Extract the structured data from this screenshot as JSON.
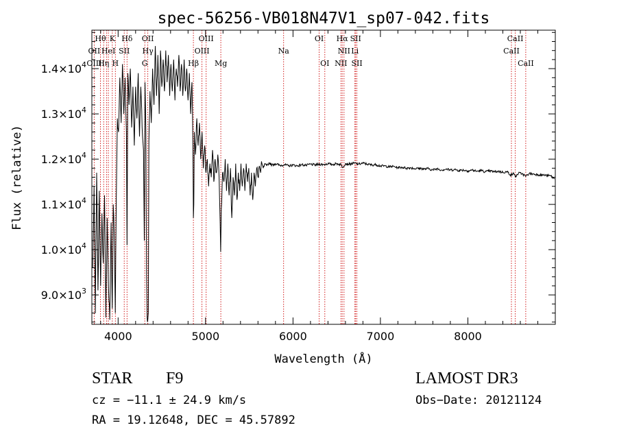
{
  "chart_data": {
    "type": "line",
    "title": "spec-56256-VB018N47V1_sp07-042.fits",
    "xlabel": "Wavelength (Å)",
    "ylabel": "Flux (relative)",
    "xlim": [
      3700,
      9000
    ],
    "ylim": [
      8350,
      14850
    ],
    "x_ticks": [
      4000,
      5000,
      6000,
      7000,
      8000
    ],
    "x_tick_labels": [
      "4000",
      "5000",
      "6000",
      "7000",
      "8000"
    ],
    "y_ticks": [
      9000,
      10000,
      11000,
      12000,
      13000,
      14000
    ],
    "y_tick_labels": [
      {
        "mant": "9.0",
        "exp": "3"
      },
      {
        "mant": "1.0",
        "exp": "4"
      },
      {
        "mant": "1.1",
        "exp": "4"
      },
      {
        "mant": "1.2",
        "exp": "4"
      },
      {
        "mant": "1.3",
        "exp": "4"
      },
      {
        "mant": "1.4",
        "exp": "4"
      }
    ],
    "series": [
      {
        "name": "flux",
        "color": "#000000",
        "points": [
          [
            3710,
            9600
          ],
          [
            3725,
            11400
          ],
          [
            3740,
            8600
          ],
          [
            3755,
            11700
          ],
          [
            3770,
            9100
          ],
          [
            3785,
            11300
          ],
          [
            3800,
            9200
          ],
          [
            3815,
            10800
          ],
          [
            3830,
            9700
          ],
          [
            3845,
            11200
          ],
          [
            3860,
            8500
          ],
          [
            3875,
            10700
          ],
          [
            3890,
            9200
          ],
          [
            3905,
            8450
          ],
          [
            3920,
            10600
          ],
          [
            3933,
            8700
          ],
          [
            3945,
            11000
          ],
          [
            3955,
            10400
          ],
          [
            3968,
            8600
          ],
          [
            3980,
            11200
          ],
          [
            3992,
            12900
          ],
          [
            4005,
            12600
          ],
          [
            4020,
            13800
          ],
          [
            4035,
            12800
          ],
          [
            4050,
            14100
          ],
          [
            4065,
            13000
          ],
          [
            4080,
            13800
          ],
          [
            4095,
            12600
          ],
          [
            4102,
            10100
          ],
          [
            4112,
            13900
          ],
          [
            4125,
            13200
          ],
          [
            4140,
            14000
          ],
          [
            4155,
            12700
          ],
          [
            4170,
            13600
          ],
          [
            4185,
            12300
          ],
          [
            4200,
            13600
          ],
          [
            4215,
            12900
          ],
          [
            4230,
            13900
          ],
          [
            4245,
            12500
          ],
          [
            4260,
            13600
          ],
          [
            4275,
            12700
          ],
          [
            4290,
            12200
          ],
          [
            4300,
            10200
          ],
          [
            4308,
            13700
          ],
          [
            4318,
            12600
          ],
          [
            4326,
            9400
          ],
          [
            4332,
            8500
          ],
          [
            4340,
            8450
          ],
          [
            4346,
            8600
          ],
          [
            4352,
            12400
          ],
          [
            4365,
            13500
          ],
          [
            4380,
            12800
          ],
          [
            4395,
            14000
          ],
          [
            4410,
            13200
          ],
          [
            4425,
            14500
          ],
          [
            4440,
            13400
          ],
          [
            4455,
            14300
          ],
          [
            4470,
            13000
          ],
          [
            4485,
            14400
          ],
          [
            4500,
            13600
          ],
          [
            4515,
            14200
          ],
          [
            4530,
            13500
          ],
          [
            4545,
            14400
          ],
          [
            4560,
            13700
          ],
          [
            4575,
            14300
          ],
          [
            4590,
            13400
          ],
          [
            4605,
            14100
          ],
          [
            4620,
            13500
          ],
          [
            4635,
            14200
          ],
          [
            4650,
            13300
          ],
          [
            4665,
            14000
          ],
          [
            4680,
            13600
          ],
          [
            4695,
            14300
          ],
          [
            4710,
            13500
          ],
          [
            4725,
            14100
          ],
          [
            4740,
            13400
          ],
          [
            4755,
            14200
          ],
          [
            4770,
            13500
          ],
          [
            4785,
            14000
          ],
          [
            4800,
            13300
          ],
          [
            4815,
            13900
          ],
          [
            4830,
            13000
          ],
          [
            4845,
            13700
          ],
          [
            4856,
            12300
          ],
          [
            4861,
            10700
          ],
          [
            4866,
            11000
          ],
          [
            4872,
            12600
          ],
          [
            4885,
            12100
          ],
          [
            4900,
            12900
          ],
          [
            4915,
            12300
          ],
          [
            4930,
            12800
          ],
          [
            4945,
            12000
          ],
          [
            4960,
            12600
          ],
          [
            4975,
            11800
          ],
          [
            4990,
            12300
          ],
          [
            5005,
            11700
          ],
          [
            5020,
            12000
          ],
          [
            5035,
            11400
          ],
          [
            5050,
            11900
          ],
          [
            5065,
            11600
          ],
          [
            5080,
            12200
          ],
          [
            5095,
            11500
          ],
          [
            5110,
            12000
          ],
          [
            5125,
            11700
          ],
          [
            5140,
            12100
          ],
          [
            5155,
            11600
          ],
          [
            5167,
            10600
          ],
          [
            5173,
            9950
          ],
          [
            5180,
            10900
          ],
          [
            5195,
            11700
          ],
          [
            5210,
            11500
          ],
          [
            5225,
            12000
          ],
          [
            5240,
            11300
          ],
          [
            5255,
            11900
          ],
          [
            5270,
            11200
          ],
          [
            5285,
            11800
          ],
          [
            5300,
            10700
          ],
          [
            5315,
            11600
          ],
          [
            5330,
            11200
          ],
          [
            5345,
            11900
          ],
          [
            5360,
            11100
          ],
          [
            5375,
            11700
          ],
          [
            5390,
            11300
          ],
          [
            5405,
            11900
          ],
          [
            5420,
            11400
          ],
          [
            5435,
            11800
          ],
          [
            5450,
            11300
          ],
          [
            5465,
            11900
          ],
          [
            5480,
            11500
          ],
          [
            5495,
            11800
          ],
          [
            5510,
            11200
          ],
          [
            5525,
            11700
          ],
          [
            5540,
            11100
          ],
          [
            5555,
            11700
          ],
          [
            5570,
            11400
          ],
          [
            5585,
            11800
          ],
          [
            5600,
            11600
          ],
          [
            5615,
            11850
          ],
          [
            5630,
            11700
          ],
          [
            5645,
            11900
          ],
          [
            5660,
            11800
          ],
          [
            5680,
            11900
          ],
          [
            5700,
            11850
          ],
          [
            5730,
            11920
          ],
          [
            5760,
            11870
          ],
          [
            5800,
            11900
          ],
          [
            5850,
            11860
          ],
          [
            5900,
            11880
          ],
          [
            5950,
            11850
          ],
          [
            6000,
            11870
          ],
          [
            6050,
            11850
          ],
          [
            6100,
            11880
          ],
          [
            6150,
            11860
          ],
          [
            6200,
            11890
          ],
          [
            6250,
            11870
          ],
          [
            6300,
            11890
          ],
          [
            6350,
            11880
          ],
          [
            6400,
            11900
          ],
          [
            6450,
            11880
          ],
          [
            6500,
            11900
          ],
          [
            6550,
            11880
          ],
          [
            6563,
            11820
          ],
          [
            6600,
            11900
          ],
          [
            6650,
            11890
          ],
          [
            6700,
            11910
          ],
          [
            6750,
            11890
          ],
          [
            6800,
            11910
          ],
          [
            6850,
            11890
          ],
          [
            6900,
            11870
          ],
          [
            6950,
            11880
          ],
          [
            7000,
            11850
          ],
          [
            7050,
            11850
          ],
          [
            7100,
            11830
          ],
          [
            7150,
            11840
          ],
          [
            7200,
            11810
          ],
          [
            7250,
            11820
          ],
          [
            7300,
            11800
          ],
          [
            7350,
            11810
          ],
          [
            7400,
            11790
          ],
          [
            7450,
            11800
          ],
          [
            7500,
            11780
          ],
          [
            7550,
            11790
          ],
          [
            7600,
            11760
          ],
          [
            7650,
            11790
          ],
          [
            7700,
            11760
          ],
          [
            7750,
            11780
          ],
          [
            7800,
            11760
          ],
          [
            7850,
            11770
          ],
          [
            7900,
            11750
          ],
          [
            7950,
            11760
          ],
          [
            8000,
            11740
          ],
          [
            8050,
            11760
          ],
          [
            8100,
            11730
          ],
          [
            8150,
            11750
          ],
          [
            8200,
            11720
          ],
          [
            8250,
            11740
          ],
          [
            8300,
            11720
          ],
          [
            8350,
            11730
          ],
          [
            8400,
            11710
          ],
          [
            8450,
            11720
          ],
          [
            8498,
            11640
          ],
          [
            8520,
            11700
          ],
          [
            8542,
            11610
          ],
          [
            8580,
            11690
          ],
          [
            8620,
            11680
          ],
          [
            8662,
            11620
          ],
          [
            8700,
            11680
          ],
          [
            8750,
            11670
          ],
          [
            8800,
            11660
          ],
          [
            8850,
            11650
          ],
          [
            8900,
            11640
          ],
          [
            8950,
            11630
          ],
          [
            8990,
            11560
          ]
        ]
      }
    ],
    "annotations": [
      {
        "label": "Hθ",
        "wl": 3798,
        "row": 0
      },
      {
        "label": "OII",
        "wl": 3727,
        "row": 1
      },
      {
        "label": "OIII",
        "wl": 3727,
        "row": 2
      },
      {
        "label": "K",
        "wl": 3934,
        "row": 0
      },
      {
        "label": "HeI",
        "wl": 3889,
        "row": 1
      },
      {
        "label": "Hη",
        "wl": 3835,
        "row": 2
      },
      {
        "label": "SII",
        "wl": 4070,
        "row": 1
      },
      {
        "label": "H",
        "wl": 3969,
        "row": 2
      },
      {
        "label": "Hδ",
        "wl": 4102,
        "row": 0
      },
      {
        "label": "OII",
        "wl": 4340,
        "row": 0
      },
      {
        "label": "Hγ",
        "wl": 4340,
        "row": 1
      },
      {
        "label": "G",
        "wl": 4305,
        "row": 2
      },
      {
        "label": "OIII",
        "wl": 5007,
        "row": 0
      },
      {
        "label": "OIII",
        "wl": 4959,
        "row": 1
      },
      {
        "label": "Hβ",
        "wl": 4861,
        "row": 2
      },
      {
        "label": "Mg",
        "wl": 5175,
        "row": 2
      },
      {
        "label": "Na",
        "wl": 5893,
        "row": 1
      },
      {
        "label": "OI",
        "wl": 6300,
        "row": 0
      },
      {
        "label": "OI",
        "wl": 6364,
        "row": 2
      },
      {
        "label": "Hα",
        "wl": 6563,
        "row": 0
      },
      {
        "label": "SII",
        "wl": 6716,
        "row": 0
      },
      {
        "label": "NII",
        "wl": 6584,
        "row": 1
      },
      {
        "label": "Li",
        "wl": 6708,
        "row": 1
      },
      {
        "label": "NII",
        "wl": 6548,
        "row": 2
      },
      {
        "label": "SII",
        "wl": 6731,
        "row": 2
      },
      {
        "label": "CaII",
        "wl": 8542,
        "row": 0
      },
      {
        "label": "CaII",
        "wl": 8498,
        "row": 1
      },
      {
        "label": "CaII",
        "wl": 8662,
        "row": 2
      }
    ],
    "line_markers": [
      3727,
      3798,
      3835,
      3869,
      3889,
      3934,
      3969,
      4070,
      4102,
      4305,
      4340,
      4861,
      4959,
      5007,
      5175,
      5893,
      6300,
      6364,
      6548,
      6563,
      6584,
      6708,
      6716,
      6731,
      8498,
      8542,
      8662
    ],
    "marker_color": "#cc0000"
  },
  "info": {
    "class_label": "STAR",
    "subclass": "F9",
    "survey": "LAMOST DR3",
    "cz": "cz = −11.1 ± 24.9 km/s",
    "obs_date": "Obs−Date: 20121124",
    "coords": "RA =  19.12648, DEC =  45.57892"
  }
}
